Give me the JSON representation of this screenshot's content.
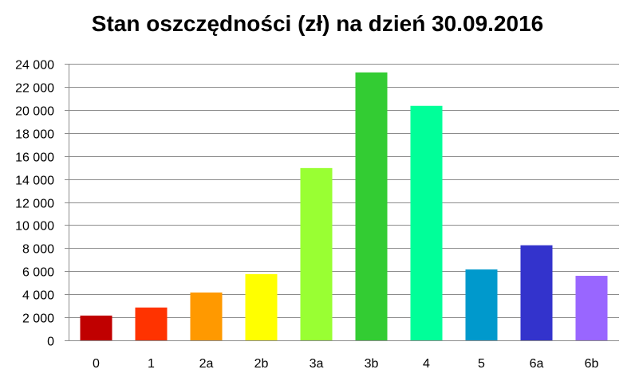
{
  "chart_data": {
    "type": "bar",
    "title": "Stan oszczędności (zł) na dzień 30.09.2016",
    "xlabel": "",
    "ylabel": "",
    "categories": [
      "0",
      "1",
      "2a",
      "2b",
      "3a",
      "3b",
      "4",
      "5",
      "6a",
      "6b"
    ],
    "values": [
      2150,
      2850,
      4150,
      5750,
      14950,
      23250,
      20350,
      6150,
      8250,
      5600
    ],
    "bar_colors": [
      "#C00000",
      "#FF3300",
      "#FF9900",
      "#FFFF00",
      "#99FF33",
      "#33CC33",
      "#00FF99",
      "#0099CC",
      "#3333CC",
      "#9966FF"
    ],
    "ylim": [
      0,
      24000
    ],
    "y_ticks": [
      0,
      2000,
      4000,
      6000,
      8000,
      10000,
      12000,
      14000,
      16000,
      18000,
      20000,
      22000,
      24000
    ],
    "y_tick_labels": [
      "0",
      "2 000",
      "4 000",
      "6 000",
      "8 000",
      "10 000",
      "12 000",
      "14 000",
      "16 000",
      "18 000",
      "20 000",
      "22 000",
      "24 000"
    ],
    "grid": true,
    "legend": "none"
  }
}
